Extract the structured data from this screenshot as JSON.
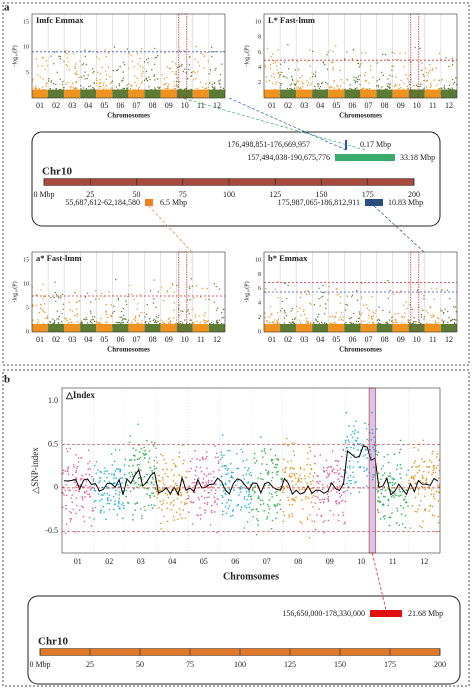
{
  "panel_a": {
    "label": "a",
    "plots": [
      {
        "title": "Imfc Emmax",
        "y_label": "-log₁₀(P)",
        "x_label": "Chromosomes",
        "yticks": [
          "15",
          "10",
          "5"
        ],
        "chromosomes": [
          "01",
          "02",
          "03",
          "04",
          "05",
          "06",
          "07",
          "08",
          "09",
          "10",
          "11",
          "12"
        ]
      },
      {
        "title": "L* Fast-lmm",
        "y_label": "-log₁₀(P)",
        "x_label": "Chromosomes",
        "yticks": [
          "10",
          "8",
          "6",
          "4",
          "2"
        ],
        "chromosomes": [
          "01",
          "02",
          "03",
          "04",
          "05",
          "06",
          "07",
          "08",
          "09",
          "10",
          "11",
          "12"
        ]
      },
      {
        "title": "a* Fast-lmm",
        "y_label": "-log₁₀(P)",
        "x_label": "Chromosomes",
        "yticks": [
          "15",
          "10",
          "5",
          "0"
        ],
        "chromosomes": [
          "01",
          "02",
          "03",
          "04",
          "05",
          "06",
          "07",
          "08",
          "09",
          "10",
          "11",
          "12"
        ]
      },
      {
        "title": "b* Emmax",
        "y_label": "-log₁₀(P)",
        "x_label": "Chromosomes",
        "yticks": [
          "10",
          "8",
          "6",
          "4",
          "2",
          "0"
        ],
        "chromosomes": [
          "01",
          "02",
          "03",
          "04",
          "05",
          "06",
          "07",
          "08",
          "09",
          "10",
          "11",
          "12"
        ]
      }
    ],
    "chr_map": {
      "name": "Chr10",
      "axis_ticks": [
        "0 Mbp",
        "25",
        "50",
        "75",
        "100",
        "125",
        "150",
        "175",
        "200"
      ],
      "regions": [
        {
          "range": "176,498,851-176,669,957",
          "size": "0.17 Mbp"
        },
        {
          "range": "157,494,038-190,675,776",
          "size": "33.18 Mbp"
        },
        {
          "range": "55,687,612-62,184,580",
          "size": "6.5 Mbp"
        },
        {
          "range": "175,987,065-186,812,911",
          "size": "10.83 Mbp"
        }
      ]
    }
  },
  "panel_b": {
    "label": "b",
    "title": "△Index",
    "y_label": "△SNP-index",
    "x_label": "Chromsomes",
    "yticks": [
      "1.0",
      "0.5",
      "0",
      "-0.5"
    ],
    "chromosomes": [
      "01",
      "02",
      "03",
      "04",
      "05",
      "06",
      "07",
      "08",
      "09",
      "10",
      "11",
      "12"
    ],
    "chr_map": {
      "name": "Chr10",
      "axis_ticks": [
        "0 Mbp",
        "25",
        "50",
        "75",
        "100",
        "125",
        "150",
        "175",
        "200"
      ],
      "region": {
        "range": "156,650,000-178,330,000",
        "size": "21.68 Mbp"
      }
    }
  }
}
